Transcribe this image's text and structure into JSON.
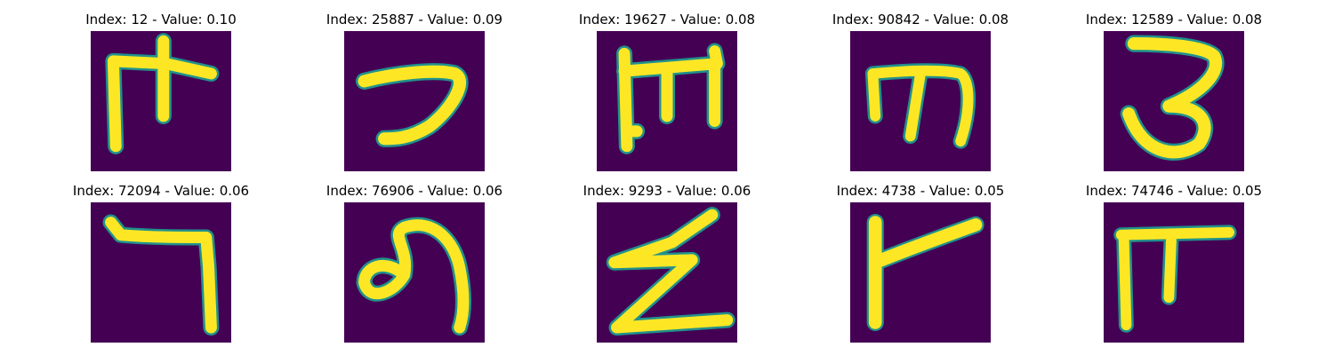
{
  "colors": {
    "background": "#440154",
    "stroke": "#fde725",
    "edge": "#21918c"
  },
  "panels": [
    {
      "title": "Index: 12 - Value: 0.10",
      "glyph": "hand-drawn-character-icon"
    },
    {
      "title": "Index: 25887 - Value: 0.09",
      "glyph": "hand-drawn-character-icon"
    },
    {
      "title": "Index: 19627 - Value: 0.08",
      "glyph": "hand-drawn-character-icon"
    },
    {
      "title": "Index: 90842 - Value: 0.08",
      "glyph": "hand-drawn-character-icon"
    },
    {
      "title": "Index: 12589 - Value: 0.08",
      "glyph": "hand-drawn-character-icon"
    },
    {
      "title": "Index: 72094 - Value: 0.06",
      "glyph": "hand-drawn-character-icon"
    },
    {
      "title": "Index: 76906 - Value: 0.06",
      "glyph": "hand-drawn-character-icon"
    },
    {
      "title": "Index: 9293 - Value: 0.06",
      "glyph": "hand-drawn-character-icon"
    },
    {
      "title": "Index: 4738 - Value: 0.05",
      "glyph": "hand-drawn-character-icon"
    },
    {
      "title": "Index: 74746 - Value: 0.05",
      "glyph": "hand-drawn-character-icon"
    }
  ]
}
